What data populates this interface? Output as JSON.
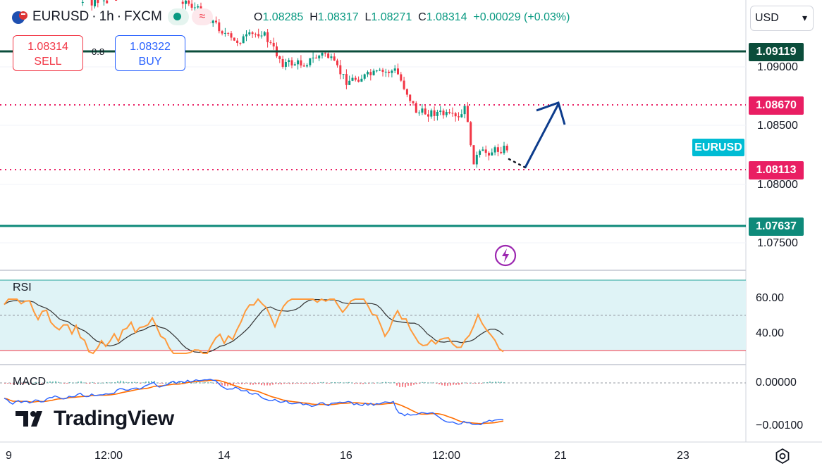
{
  "header": {
    "symbol": "EURUSD",
    "sep1": "·",
    "interval": "1h",
    "sep2": "·",
    "source": "FXCM",
    "ohlc": {
      "o_label": "O",
      "o": "1.08285",
      "h_label": "H",
      "h": "1.08317",
      "l_label": "L",
      "l": "1.08271",
      "c_label": "C",
      "c": "1.08314",
      "change": "+0.00029 (+0.03%)"
    }
  },
  "trade": {
    "sell_price": "1.08314",
    "sell_label": "SELL",
    "spread": "0.8",
    "buy_price": "1.08322",
    "buy_label": "BUY"
  },
  "currency_select": {
    "value": "USD",
    "chevron": "▾"
  },
  "price_axis": [
    "1.09000",
    "1.08500",
    "1.08000",
    "1.07500"
  ],
  "levels": [
    {
      "value": "1.09119",
      "color": "#0b4d3b",
      "style": "solid"
    },
    {
      "value": "1.08670",
      "color": "#e91e63",
      "style": "dotted"
    },
    {
      "value": "1.08113",
      "color": "#e91e63",
      "style": "dotted"
    },
    {
      "value": "1.07637",
      "color": "#0e8a7a",
      "style": "solid"
    }
  ],
  "symbol_tag": "EURUSD",
  "rsi": {
    "label": "RSI",
    "axis": [
      "60.00",
      "40.00"
    ]
  },
  "macd": {
    "label": "MACD",
    "axis": [
      "0.00000",
      "−0.00100"
    ]
  },
  "time_axis": [
    "9",
    "12:00",
    "14",
    "16",
    "12:00",
    "21",
    "23"
  ],
  "logo_text": "TradingView",
  "colors": {
    "accent": "#2962ff",
    "up": "#089981",
    "down": "#f23645",
    "rsi": "#ff9a3c",
    "arrow": "#0d3c8c"
  },
  "icons": {
    "flag": "eu-us-flag-icon",
    "market": "market-open-icon",
    "settings": "gear-icon",
    "event": "lightning-icon"
  }
}
